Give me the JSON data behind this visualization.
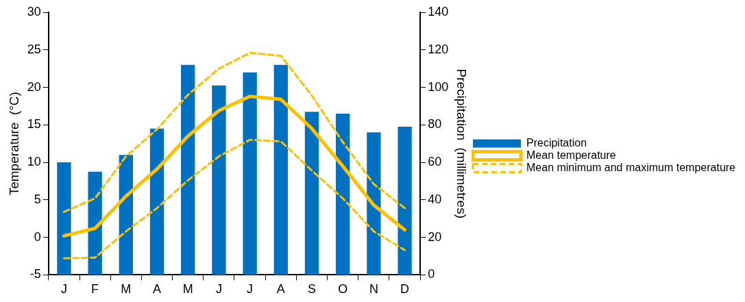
{
  "chart_data": {
    "type": "bar",
    "categories": [
      "J",
      "F",
      "M",
      "A",
      "M",
      "J",
      "J",
      "A",
      "S",
      "O",
      "N",
      "D"
    ],
    "ylabel": "Temperature  (°C)",
    "y2label": "Precipitation  (millimetres)",
    "ylim": [
      -5,
      30
    ],
    "yticks": [
      -5,
      0,
      5,
      10,
      15,
      20,
      25,
      30
    ],
    "y2lim": [
      0,
      140
    ],
    "y2ticks": [
      0,
      20,
      40,
      60,
      80,
      100,
      120,
      140
    ],
    "grid": false,
    "legend": "right",
    "marker": "none",
    "series": [
      {
        "name": "Precipitation",
        "type": "bar",
        "axis": "y2",
        "color": "#0070c0",
        "values": [
          60,
          55,
          64,
          78,
          112,
          101,
          108,
          112,
          87,
          86,
          76,
          79
        ]
      },
      {
        "name": "Mean temperature",
        "type": "line",
        "axis": "y",
        "color": "#ffc000",
        "line_style": "solid",
        "values": [
          0.2,
          1.2,
          5.5,
          9.1,
          13.5,
          16.9,
          18.8,
          18.4,
          14.5,
          9.5,
          4.3,
          1.0
        ]
      },
      {
        "name": "Mean minimum and maximum temperature",
        "type": "line",
        "axis": "y",
        "color": "#ffc000",
        "line_style": "dashed",
        "values": [
          3.4,
          5.2,
          10.8,
          14.4,
          19.0,
          22.5,
          24.6,
          24.2,
          18.9,
          12.7,
          7.1,
          3.9
        ]
      },
      {
        "type": "line",
        "axis": "y",
        "color": "#ffc000",
        "line_style": "dashed",
        "values": [
          -2.8,
          -2.7,
          0.8,
          3.9,
          7.6,
          10.8,
          13.0,
          12.8,
          8.9,
          5.2,
          0.8,
          -1.7
        ]
      }
    ]
  }
}
